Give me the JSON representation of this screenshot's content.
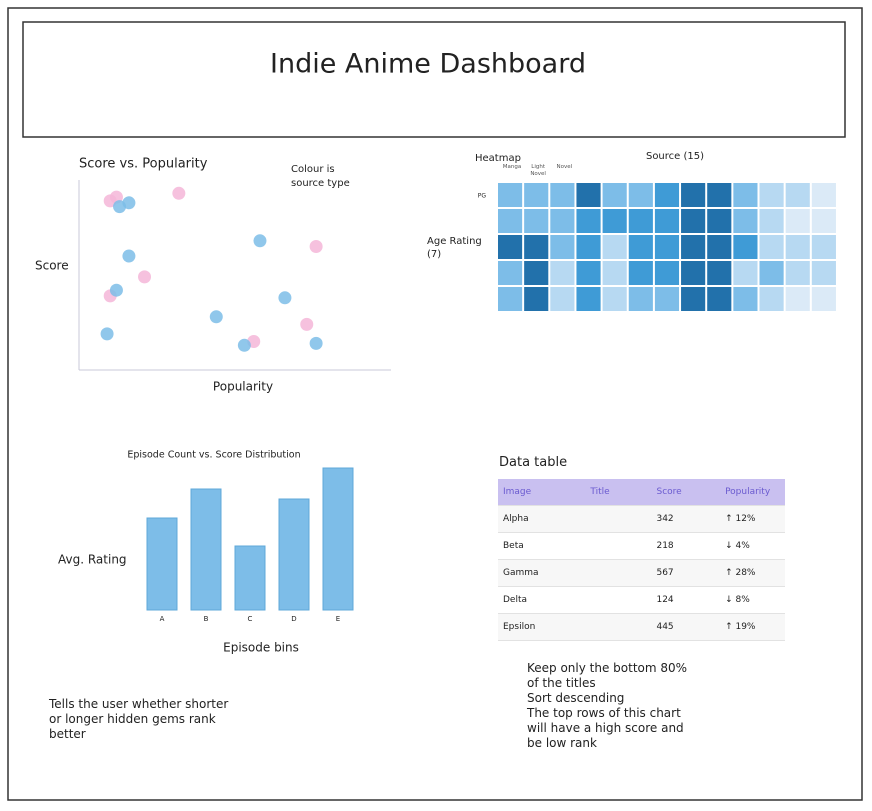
{
  "header": {
    "title": "Indie Anime Dashboard"
  },
  "chart_data": [
    {
      "type": "scatter",
      "title": "Score vs. Popularity",
      "x_label": "Popularity",
      "y_label": "Score",
      "annotation": "Colour is source type",
      "xlim": [
        0,
        100
      ],
      "ylim": [
        0,
        100
      ],
      "series": [
        {
          "color": "#f4b6d8",
          "x": [
            10,
            12,
            32,
            76,
            21,
            10,
            73,
            56
          ],
          "values": [
            89,
            91,
            93,
            65,
            49,
            39,
            24,
            15
          ]
        },
        {
          "color": "#7dbde8",
          "x": [
            13,
            16,
            16,
            58,
            12,
            66,
            44,
            9,
            53,
            76
          ],
          "values": [
            86,
            88,
            60,
            68,
            42,
            38,
            28,
            19,
            13,
            14
          ]
        }
      ]
    },
    {
      "type": "heatmap",
      "title": "Heatmap",
      "x_label": "Source (15)",
      "y_label": "Age Rating (7)",
      "categories": [
        "Manga",
        "Light Novel",
        "Novel",
        null,
        null,
        null,
        null,
        null,
        null,
        null,
        null,
        null,
        null
      ],
      "rows": [
        "PG",
        null,
        null,
        null,
        null
      ],
      "colors": [
        "#dbeaf7",
        "#b7d9f2",
        "#7dbde8",
        "#3f9bd6",
        "#2271ab"
      ],
      "values": [
        [
          2,
          2,
          2,
          4,
          2,
          2,
          3,
          4,
          4,
          2,
          1,
          1,
          0
        ],
        [
          2,
          2,
          2,
          3,
          3,
          3,
          3,
          4,
          4,
          2,
          1,
          0,
          0
        ],
        [
          4,
          4,
          2,
          3,
          1,
          3,
          3,
          4,
          4,
          3,
          1,
          1,
          1
        ],
        [
          2,
          4,
          1,
          3,
          1,
          3,
          3,
          4,
          4,
          1,
          2,
          1,
          1
        ],
        [
          2,
          4,
          1,
          3,
          1,
          2,
          2,
          4,
          4,
          2,
          1,
          0,
          0
        ]
      ]
    },
    {
      "type": "bar",
      "title": "Episode Count vs. Score Distribution",
      "x_label": "Episode bins",
      "y_label": "Avg. Rating",
      "categories": [
        "A",
        "B",
        "C",
        "D",
        "E"
      ],
      "values": [
        92,
        121,
        64,
        111,
        142
      ],
      "color": "#7dbde8",
      "ylim": [
        0,
        150
      ]
    }
  ],
  "table": {
    "title": "Data table",
    "columns": [
      "Image",
      "Title",
      "Score",
      "Popularity"
    ],
    "rows": [
      {
        "image": "Alpha",
        "score": 342,
        "popularity": "↑ 12%"
      },
      {
        "image": "Beta",
        "score": 218,
        "popularity": "↓ 4%"
      },
      {
        "image": "Gamma",
        "score": 567,
        "popularity": "↑ 28%"
      },
      {
        "image": "Delta",
        "score": 124,
        "popularity": "↓ 8%"
      },
      {
        "image": "Epsilon",
        "score": 445,
        "popularity": "↑ 19%"
      }
    ]
  },
  "notes": {
    "left": "Tells the user whether shorter or longer hidden gems rank better",
    "right": [
      "Keep only the bottom 80% of the titles",
      "Sort descending",
      "The top rows of this chart will have a high score and be low rank"
    ]
  }
}
